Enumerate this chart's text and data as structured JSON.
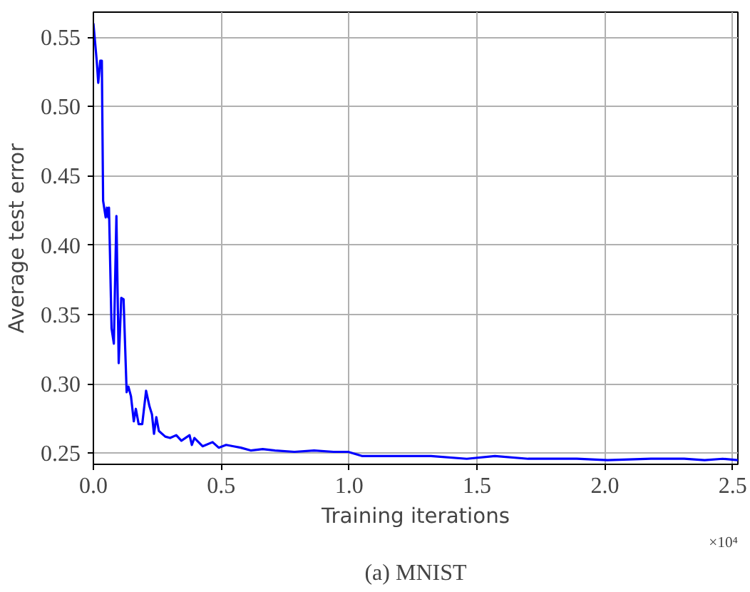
{
  "chart_data": {
    "type": "line",
    "title": "(a) MNIST",
    "xlabel": "Training iterations",
    "ylabel": "Average test error",
    "annotations": [
      "×10⁴"
    ],
    "x": [
      0.0,
      0.013,
      0.019,
      0.027,
      0.033,
      0.038,
      0.048,
      0.053,
      0.058,
      0.061,
      0.071,
      0.08,
      0.09,
      0.099,
      0.109,
      0.118,
      0.13,
      0.137,
      0.147,
      0.158,
      0.166,
      0.177,
      0.191,
      0.206,
      0.219,
      0.229,
      0.237,
      0.246,
      0.256,
      0.281,
      0.3,
      0.324,
      0.344,
      0.376,
      0.385,
      0.395,
      0.427,
      0.466,
      0.49,
      0.519,
      0.548,
      0.576,
      0.615,
      0.662,
      0.71,
      0.786,
      0.863,
      0.939,
      0.996,
      1.05,
      1.14,
      1.32,
      1.46,
      1.57,
      1.7,
      1.89,
      2.01,
      2.18,
      2.31,
      2.39,
      2.46,
      2.52
    ],
    "series": [
      {
        "color": "#0000ff",
        "values": [
          0.56,
          0.533,
          0.517,
          0.533,
          0.533,
          0.432,
          0.42,
          0.427,
          0.42,
          0.427,
          0.34,
          0.329,
          0.421,
          0.315,
          0.362,
          0.361,
          0.294,
          0.298,
          0.291,
          0.273,
          0.282,
          0.271,
          0.271,
          0.295,
          0.284,
          0.278,
          0.264,
          0.276,
          0.266,
          0.262,
          0.261,
          0.263,
          0.259,
          0.263,
          0.256,
          0.261,
          0.255,
          0.258,
          0.254,
          0.256,
          0.255,
          0.254,
          0.252,
          0.253,
          0.252,
          0.251,
          0.252,
          0.251,
          0.251,
          0.248,
          0.248,
          0.248,
          0.246,
          0.248,
          0.246,
          0.246,
          0.245,
          0.246,
          0.246,
          0.245,
          0.246,
          0.245
        ]
      }
    ],
    "xlim": [
      0,
      2.52
    ],
    "ylim": [
      0.242,
      0.568
    ],
    "xticks": [
      {
        "value": 0,
        "label": "0.0"
      },
      0.5,
      {
        "value": 1,
        "label": "1.0"
      },
      1.5,
      {
        "value": 2,
        "label": "2.0"
      },
      2.5
    ],
    "yticks": [
      0.25,
      {
        "value": 0.3,
        "label": "0.30"
      },
      0.35,
      {
        "value": 0.4,
        "label": "0.40"
      },
      0.45,
      {
        "value": 0.5,
        "label": "0.50"
      },
      0.55
    ],
    "grid": true,
    "marker": "none",
    "line_style": "solid"
  }
}
